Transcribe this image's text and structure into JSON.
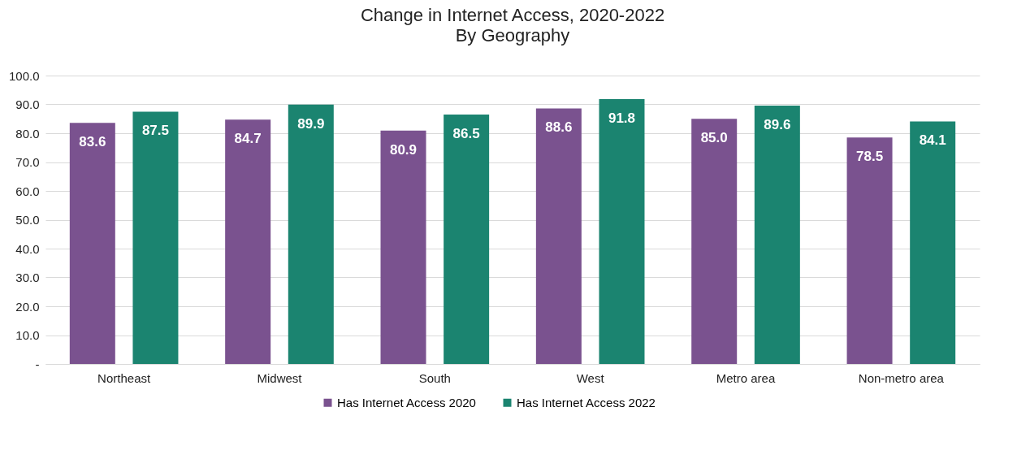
{
  "chart_data": {
    "type": "bar",
    "title": "Change in Internet Access, 2020-2022",
    "subtitle": "By Geography",
    "categories": [
      "Northeast",
      "Midwest",
      "South",
      "West",
      "Metro area",
      "Non-metro area"
    ],
    "series": [
      {
        "name": "Has Internet Access 2020",
        "color": "#7a528f",
        "values": [
          83.6,
          84.7,
          80.9,
          88.6,
          85.0,
          78.5
        ],
        "value_labels": [
          "83.6",
          "84.7",
          "80.9",
          "88.6",
          "85.0",
          "78.5"
        ]
      },
      {
        "name": "Has Internet Access 2022",
        "color": "#1b8470",
        "values": [
          87.5,
          89.9,
          86.5,
          91.8,
          89.6,
          84.1
        ],
        "value_labels": [
          "87.5",
          "89.9",
          "86.5",
          "91.8",
          "89.6",
          "84.1"
        ]
      }
    ],
    "ylim": [
      0,
      100
    ],
    "yticks": [
      {
        "value": 0,
        "label": "-"
      },
      {
        "value": 10,
        "label": "10.0"
      },
      {
        "value": 20,
        "label": "20.0"
      },
      {
        "value": 30,
        "label": "30.0"
      },
      {
        "value": 40,
        "label": "40.0"
      },
      {
        "value": 50,
        "label": "50.0"
      },
      {
        "value": 60,
        "label": "60.0"
      },
      {
        "value": 70,
        "label": "70.0"
      },
      {
        "value": 80,
        "label": "80.0"
      },
      {
        "value": 90,
        "label": "90.0"
      },
      {
        "value": 100,
        "label": "100.0"
      }
    ],
    "grid": "y",
    "legend": "bottom"
  }
}
